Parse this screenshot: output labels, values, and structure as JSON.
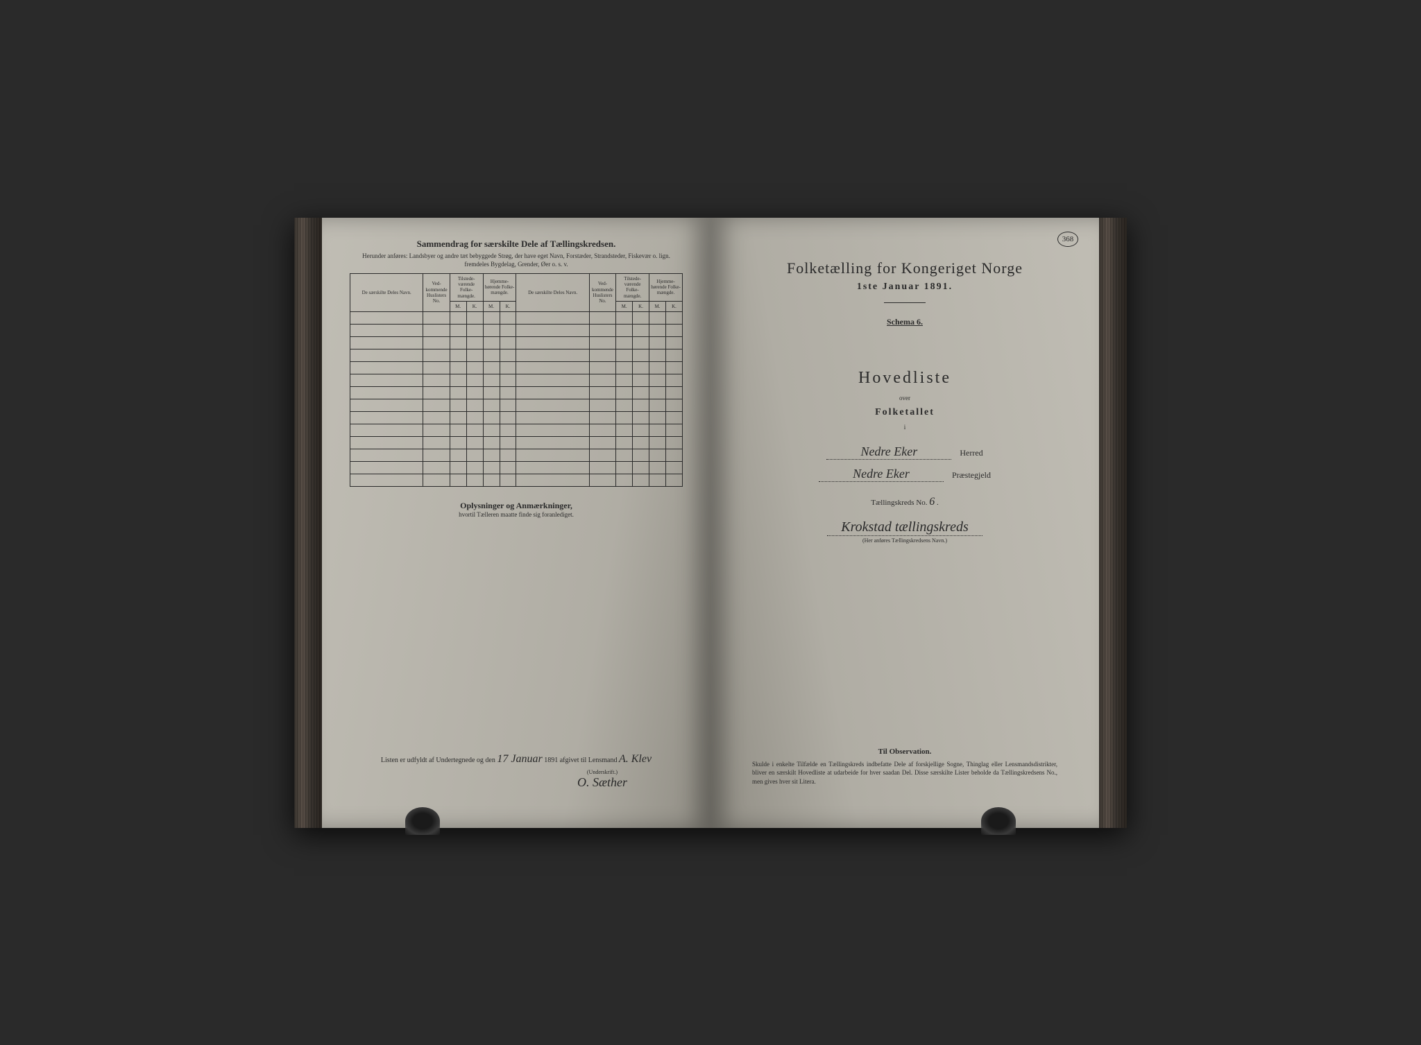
{
  "pageNumber": "368",
  "leftPage": {
    "title": "Sammendrag for særskilte Dele af Tællingskredsen.",
    "subtitle1": "Herunder anføres: Landsbyer og andre tæt bebyggede Strøg, der have eget Navn, Forstæder, Strandsteder, Fiskevær o. lign.",
    "subtitle2": "fremdeles Bygdelag, Grender, Øer o. s. v.",
    "headers": {
      "nameCol": "De særskilte Deles Navn.",
      "vedkommende": "Ved-kommende Huslisters No.",
      "tilstede": "Tilstede-værende Folke-mængde.",
      "hjemme": "Hjemme-hørende Folke-mængde.",
      "m": "M.",
      "k": "K."
    },
    "oplysninger": "Oplysninger og Anmærkninger,",
    "oplysningerSub": "hvortil Tælleren maatte finde sig foranlediget.",
    "listenText1": "Listen er udfyldt af Undertegnede og den",
    "listenDate": "17 Januar",
    "listenText2": "1891 afgivet til Lensmand",
    "lensmandName": "A. Klev",
    "underskrift": "(Underskrift.)",
    "signature": "O. Sæther"
  },
  "rightPage": {
    "censusTitle": "Folketælling for Kongeriget Norge",
    "censusDate": "1ste Januar 1891.",
    "schema": "Schema 6.",
    "hovedliste": "Hovedliste",
    "over": "over",
    "folketallet": "Folketallet",
    "i": "i",
    "herred": "Nedre Eker",
    "herredLabel": "Herred",
    "praestegjeld": "Nedre Eker",
    "praestegjeldLabel": "Præstegjeld",
    "taellingskredsLabel": "Tællingskreds No.",
    "taellingskredsNo": "6",
    "kredsName": "Krokstad tællingskreds",
    "kredsNote": "(Her anføres Tællingskredsens Navn.)",
    "tilObservation": "Til Observation.",
    "tilObservationText": "Skulde i enkelte Tilfælde en Tællingskreds indbefatte Dele af forskjellige Sogne, Thinglag eller Lensmandsdistrikter, bliver en særskilt Hovedliste at udarbeide for hver saadan Del. Disse særskilte Lister beholde da Tællingskredsens No., men gives hver sit Litera."
  }
}
